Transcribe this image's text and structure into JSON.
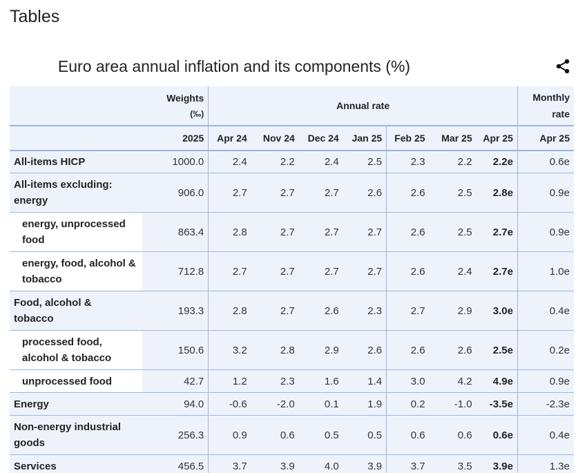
{
  "page": {
    "section_title": "Tables",
    "table_title": "Euro area annual inflation and its components (%)"
  },
  "header": {
    "weights": "Weights",
    "weights_unit": "(‰)",
    "annual_rate": "Annual rate",
    "monthly_rate_line1": "Monthly",
    "monthly_rate_line2": "rate",
    "columns": [
      "2025",
      "Apr 24",
      "Nov 24",
      "Dec 24",
      "Jan 25",
      "Feb 25",
      "Mar 25",
      "Apr 25",
      "Apr 25"
    ]
  },
  "rows": [
    {
      "label": "All-items HICP",
      "values": [
        "1000.0",
        "2.4",
        "2.2",
        "2.4",
        "2.5",
        "2.3",
        "2.2",
        "2.2e",
        "0.6e"
      ]
    },
    {
      "label": "All-items excluding: energy",
      "values": [
        "906.0",
        "2.7",
        "2.7",
        "2.7",
        "2.6",
        "2.6",
        "2.5",
        "2.8e",
        "0.9e"
      ]
    },
    {
      "label": "energy, unprocessed food",
      "values": [
        "863.4",
        "2.8",
        "2.7",
        "2.7",
        "2.7",
        "2.6",
        "2.5",
        "2.7e",
        "0.9e"
      ]
    },
    {
      "label": "energy, food, alcohol & tobacco",
      "values": [
        "712.8",
        "2.7",
        "2.7",
        "2.7",
        "2.7",
        "2.6",
        "2.4",
        "2.7e",
        "1.0e"
      ]
    },
    {
      "label": "Food, alcohol & tobacco",
      "values": [
        "193.3",
        "2.8",
        "2.7",
        "2.6",
        "2.3",
        "2.7",
        "2.9",
        "3.0e",
        "0.4e"
      ]
    },
    {
      "label": "processed food, alcohol & tobacco",
      "values": [
        "150.6",
        "3.2",
        "2.8",
        "2.9",
        "2.6",
        "2.6",
        "2.6",
        "2.5e",
        "0.2e"
      ]
    },
    {
      "label": "unprocessed food",
      "values": [
        "42.7",
        "1.2",
        "2.3",
        "1.6",
        "1.4",
        "3.0",
        "4.2",
        "4.9e",
        "0.9e"
      ]
    },
    {
      "label": "Energy",
      "values": [
        "94.0",
        "-0.6",
        "-2.0",
        "0.1",
        "1.9",
        "0.2",
        "-1.0",
        "-3.5e",
        "-2.3e"
      ]
    },
    {
      "label": "Non-energy industrial goods",
      "values": [
        "256.3",
        "0.9",
        "0.6",
        "0.5",
        "0.5",
        "0.6",
        "0.6",
        "0.6e",
        "0.4e"
      ]
    },
    {
      "label": "Services",
      "values": [
        "456.5",
        "3.7",
        "3.9",
        "4.0",
        "3.9",
        "3.7",
        "3.5",
        "3.9e",
        "1.3e"
      ]
    }
  ],
  "icons": {
    "share": "share-icon"
  },
  "colors": {
    "header_bg": "#eef3fb",
    "rule": "#9cb5e0"
  }
}
